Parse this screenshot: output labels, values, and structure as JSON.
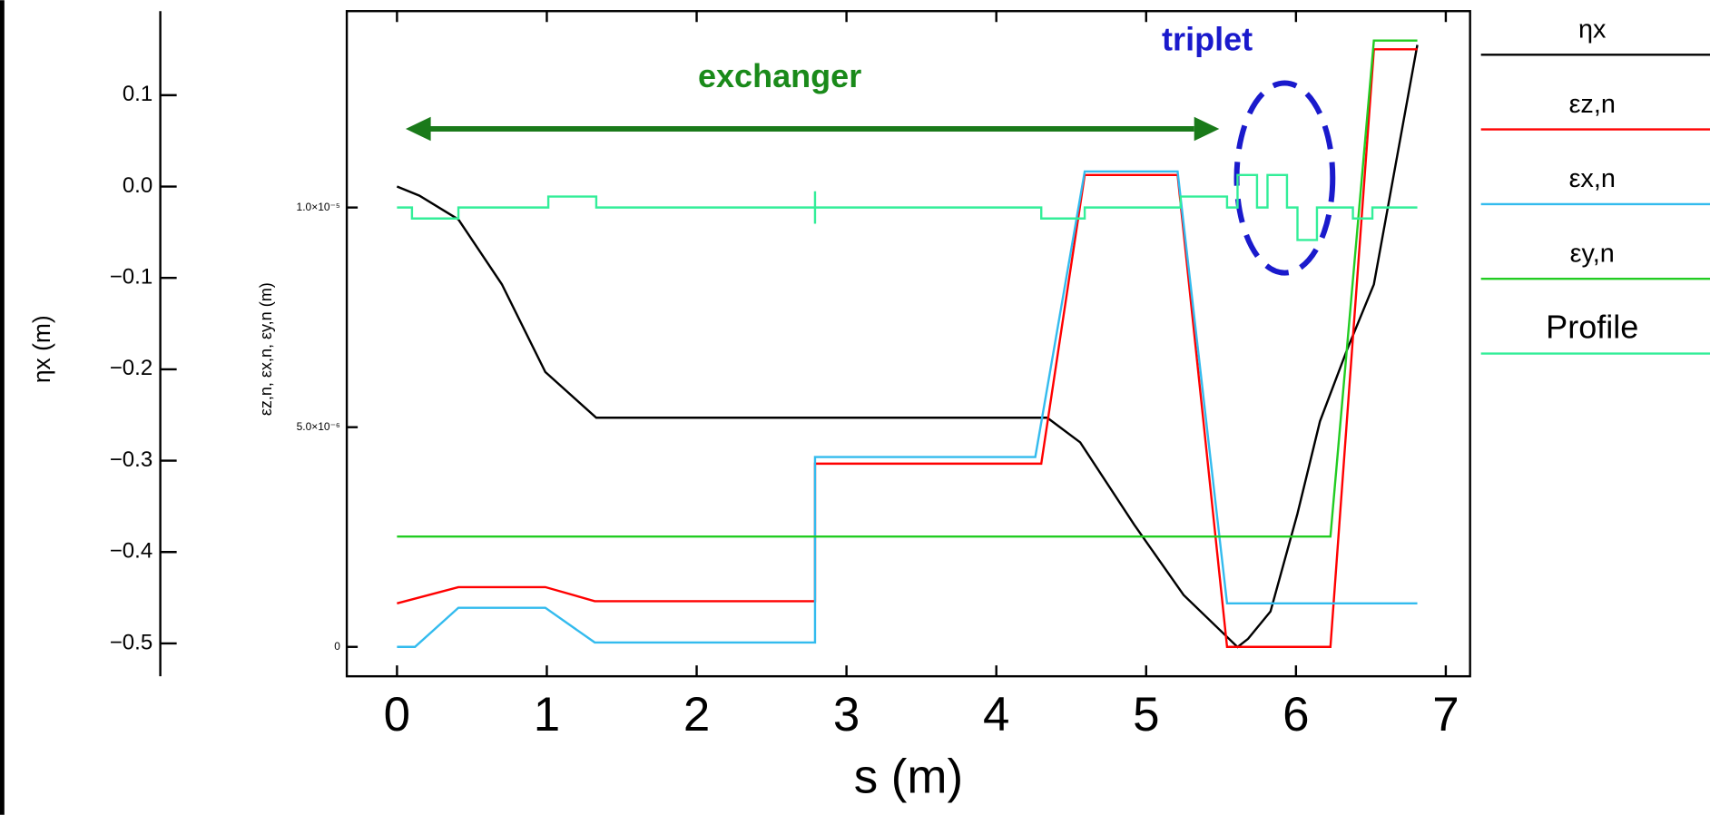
{
  "chart_data": {
    "type": "line",
    "xlabel": "s (m)",
    "ylabel": "ηx (m)",
    "y2label": "εz,n, εx,n, εy,n (m)",
    "xlim": [
      -0.335,
      7.162
    ],
    "xticks": [
      0,
      1,
      2,
      3,
      4,
      5,
      6,
      7
    ],
    "ylim": [
      -0.536,
      0.192
    ],
    "yticks": [
      0.1,
      {
        "value": 0,
        "label": "0.0"
      },
      {
        "value": -0.1,
        "label": "−0.1"
      },
      {
        "value": -0.2,
        "label": "−0.2"
      },
      {
        "value": -0.3,
        "label": "−0.3"
      },
      {
        "value": -0.4,
        "label": "−0.4"
      },
      {
        "value": -0.5,
        "label": "−0.5"
      }
    ],
    "y2lim": [
      -6.7e-07,
      1.447e-05
    ],
    "y2ticks": [
      0,
      {
        "value": 5e-06,
        "label": "5.0×10⁻⁶"
      },
      {
        "value": 1e-05,
        "label": "1.0×10⁻⁵"
      }
    ],
    "annotations": [
      "exchanger",
      "triplet"
    ],
    "series": [
      {
        "name": "ηx",
        "color": "#000000",
        "x": [
          0,
          0.15,
          0.41,
          0.7,
          0.99,
          1.33,
          4.34,
          4.56,
          4.92,
          5.25,
          5.61,
          5.68,
          5.83,
          6.01,
          6.16,
          6.34,
          6.52,
          6.81
        ],
        "values": [
          0,
          -0.01,
          -0.036,
          -0.107,
          -0.203,
          -0.253,
          -0.253,
          -0.28,
          -0.37,
          -0.447,
          -0.504,
          -0.495,
          -0.465,
          -0.358,
          -0.257,
          -0.179,
          -0.107,
          0.155
        ]
      },
      {
        "name": "εz,n",
        "color": "#ff0000",
        "axis": "y2",
        "x": [
          0,
          0.41,
          0.99,
          1.32,
          2.79,
          2.79,
          4.3,
          4.59,
          5.21,
          5.54,
          6.23,
          6.52,
          6.81
        ],
        "values": [
          9.9e-07,
          1.36e-06,
          1.36e-06,
          1.04e-06,
          1.04e-06,
          4.17e-06,
          4.17e-06,
          1.074e-05,
          1.074e-05,
          0,
          0,
          1.36e-05,
          1.36e-05
        ]
      },
      {
        "name": "εx,n",
        "color": "#33bbee",
        "axis": "y2",
        "x": [
          0,
          0.12,
          0.41,
          0.99,
          1.32,
          2.79,
          2.79,
          4.26,
          4.59,
          5.21,
          5.54,
          6.81
        ],
        "values": [
          0,
          0,
          8.9e-07,
          8.9e-07,
          1e-07,
          1e-07,
          4.32e-06,
          4.32e-06,
          1.082e-05,
          1.082e-05,
          9.9e-07,
          9.9e-07
        ]
      },
      {
        "name": "εy,n",
        "color": "#22cc22",
        "axis": "y2",
        "x": [
          0,
          6.23,
          6.52,
          6.81
        ],
        "values": [
          2.51e-06,
          2.51e-06,
          1.38e-05,
          1.38e-05
        ]
      },
      {
        "name": "Profile",
        "color": "#33ee99",
        "axis": "y2",
        "x": [
          0,
          0.1,
          0.1,
          0.41,
          0.41,
          1.01,
          1.01,
          1.33,
          1.33,
          2.79,
          2.79,
          2.79,
          2.79,
          4.3,
          4.3,
          4.59,
          4.59,
          5.23,
          5.23,
          5.54,
          5.54,
          5.61,
          5.61,
          5.74,
          5.74,
          5.81,
          5.81,
          5.94,
          5.94,
          6.01,
          6.01,
          6.14,
          6.14,
          6.38,
          6.38,
          6.51,
          6.51,
          6.81
        ],
        "values": [
          1e-05,
          1e-05,
          9.75e-06,
          9.75e-06,
          1e-05,
          1e-05,
          1.025e-05,
          1.025e-05,
          1e-05,
          1e-05,
          1.037e-05,
          9.63e-06,
          1e-05,
          1e-05,
          9.75e-06,
          9.75e-06,
          1e-05,
          1e-05,
          1.025e-05,
          1.025e-05,
          1e-05,
          1e-05,
          1.074e-05,
          1.074e-05,
          1e-05,
          1e-05,
          1.074e-05,
          1.074e-05,
          1e-05,
          1e-05,
          9.26e-06,
          9.26e-06,
          1e-05,
          1e-05,
          9.75e-06,
          9.75e-06,
          1e-05,
          1e-05
        ]
      }
    ]
  }
}
